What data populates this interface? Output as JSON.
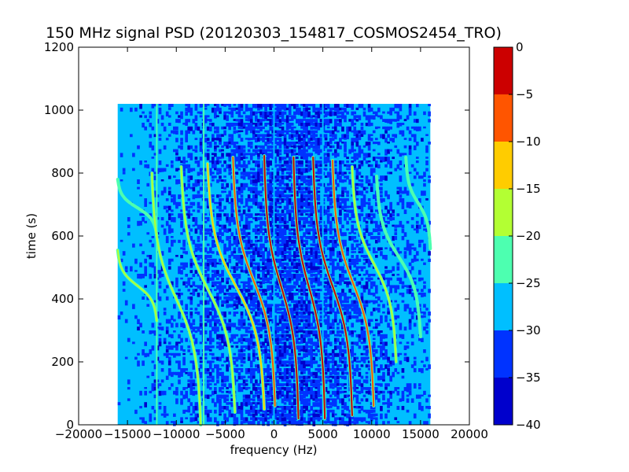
{
  "chart_data": {
    "type": "heatmap",
    "title": "150 MHz signal PSD (20120303_154817_COSMOS2454_TRO)",
    "xlabel": "frequency (Hz)",
    "ylabel": "time (s)",
    "xlim": [
      -20000,
      20000
    ],
    "ylim": [
      0,
      1200
    ],
    "x_ticks": [
      -20000,
      -15000,
      -10000,
      -5000,
      0,
      5000,
      10000,
      15000,
      20000
    ],
    "x_tick_labels": [
      "−20000",
      "−15000",
      "−10000",
      "−5000",
      "0",
      "5000",
      "10000",
      "15000",
      "20000"
    ],
    "y_ticks": [
      0,
      200,
      400,
      600,
      800,
      1000,
      1200
    ],
    "y_tick_labels": [
      "0",
      "200",
      "400",
      "600",
      "800",
      "1000",
      "1200"
    ],
    "data_extent": {
      "x": [
        -16000,
        16000
      ],
      "y": [
        0,
        1020
      ]
    },
    "colorbar": {
      "min": -40,
      "max": 0,
      "levels": [
        -40,
        -35,
        -30,
        -25,
        -20,
        -15,
        -10,
        -5,
        0
      ],
      "tick_labels": [
        "−40",
        "−35",
        "−30",
        "−25",
        "−20",
        "−15",
        "−10",
        "−5",
        "0"
      ],
      "colors": [
        "#0000cc",
        "#0033ff",
        "#00bfff",
        "#4dffb0",
        "#b3ff33",
        "#ffcc00",
        "#ff5500",
        "#cc0000"
      ]
    },
    "background_color": "#00bfff",
    "noise_colors": [
      "#0033ff",
      "#0000cc"
    ],
    "vertical_lines": [
      {
        "x": -12000,
        "value": -25
      },
      {
        "x": -7200,
        "value": -22
      },
      {
        "x": 0,
        "value": -27
      },
      {
        "x": 5000,
        "value": -27
      }
    ],
    "traces": [
      {
        "x_top": -16000,
        "x_bottom": -12000,
        "y_top": 780,
        "y_bottom": 600,
        "peak": -22
      },
      {
        "x_top": -16000,
        "x_bottom": -12000,
        "y_top": 555,
        "y_bottom": 330,
        "peak": -20
      },
      {
        "x_top": -12500,
        "x_bottom": -7500,
        "y_top": 800,
        "y_bottom": 0,
        "peak": -18
      },
      {
        "x_top": -9500,
        "x_bottom": -4000,
        "y_top": 820,
        "y_bottom": 40,
        "peak": -17
      },
      {
        "x_top": -6800,
        "x_bottom": -1000,
        "y_top": 830,
        "y_bottom": 50,
        "peak": -14
      },
      {
        "x_top": -4200,
        "x_bottom": 100,
        "y_top": 850,
        "y_bottom": 60,
        "peak": -8
      },
      {
        "x_top": -1000,
        "x_bottom": 2500,
        "y_top": 855,
        "y_bottom": 20,
        "peak": -5
      },
      {
        "x_top": 2000,
        "x_bottom": 5200,
        "y_top": 850,
        "y_bottom": 20,
        "peak": -4
      },
      {
        "x_top": 4000,
        "x_bottom": 8000,
        "y_top": 850,
        "y_bottom": 30,
        "peak": -5
      },
      {
        "x_top": 6000,
        "x_bottom": 10200,
        "y_top": 840,
        "y_bottom": 60,
        "peak": -7
      },
      {
        "x_top": 8000,
        "x_bottom": 12500,
        "y_top": 820,
        "y_bottom": 200,
        "peak": -17
      },
      {
        "x_top": 10500,
        "x_bottom": 15000,
        "y_top": 790,
        "y_bottom": 280,
        "peak": -22
      },
      {
        "x_top": 13500,
        "x_bottom": 16000,
        "y_top": 850,
        "y_bottom": 560,
        "peak": -22
      }
    ]
  }
}
